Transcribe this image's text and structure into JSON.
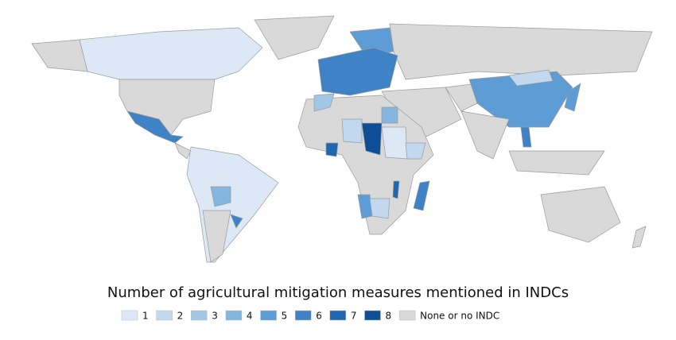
{
  "title": "Number of agricultural mitigation measures mentioned in INDCs",
  "legend": [
    {
      "label": "1",
      "color": "#dce8f6"
    },
    {
      "label": "2",
      "color": "#c2d8ee"
    },
    {
      "label": "3",
      "color": "#a2c6e6"
    },
    {
      "label": "4",
      "color": "#84b5de"
    },
    {
      "label": "5",
      "color": "#5d9cd4"
    },
    {
      "label": "6",
      "color": "#3f83c6"
    },
    {
      "label": "7",
      "color": "#2166b0"
    },
    {
      "label": "8",
      "color": "#0d4e97"
    },
    {
      "label": "None or no INDC",
      "color": "#d9d9d9"
    }
  ]
}
